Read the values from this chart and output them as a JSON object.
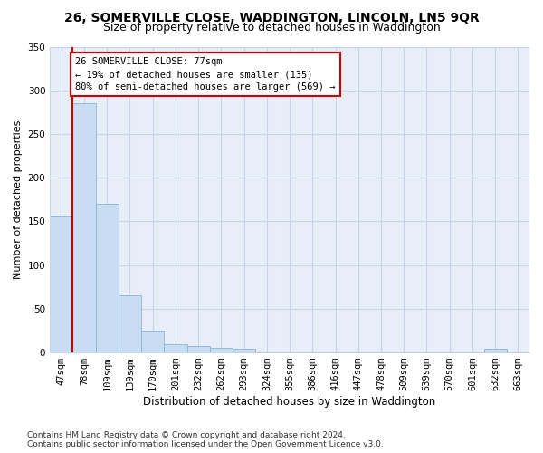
{
  "title": "26, SOMERVILLE CLOSE, WADDINGTON, LINCOLN, LN5 9QR",
  "subtitle": "Size of property relative to detached houses in Waddington",
  "xlabel": "Distribution of detached houses by size in Waddington",
  "ylabel": "Number of detached properties",
  "categories": [
    "47sqm",
    "78sqm",
    "109sqm",
    "139sqm",
    "170sqm",
    "201sqm",
    "232sqm",
    "262sqm",
    "293sqm",
    "324sqm",
    "355sqm",
    "386sqm",
    "416sqm",
    "447sqm",
    "478sqm",
    "509sqm",
    "539sqm",
    "570sqm",
    "601sqm",
    "632sqm",
    "663sqm"
  ],
  "values": [
    157,
    285,
    170,
    65,
    25,
    9,
    7,
    5,
    4,
    0,
    0,
    0,
    0,
    0,
    0,
    0,
    0,
    0,
    0,
    4,
    0
  ],
  "bar_color": "#c9ddf2",
  "bar_edge_color": "#8ab4d8",
  "vline_color": "#cc0000",
  "annotation_text": "26 SOMERVILLE CLOSE: 77sqm\n← 19% of detached houses are smaller (135)\n80% of semi-detached houses are larger (569) →",
  "annotation_box_color": "#ffffff",
  "annotation_box_edge_color": "#cc0000",
  "ylim": [
    0,
    350
  ],
  "yticks": [
    0,
    50,
    100,
    150,
    200,
    250,
    300,
    350
  ],
  "grid_color": "#c8d4e8",
  "background_color": "#e8eef8",
  "footer": "Contains HM Land Registry data © Crown copyright and database right 2024.\nContains public sector information licensed under the Open Government Licence v3.0.",
  "title_fontsize": 10,
  "subtitle_fontsize": 9,
  "xlabel_fontsize": 8.5,
  "ylabel_fontsize": 8,
  "tick_fontsize": 7.5,
  "annotation_fontsize": 7.5,
  "footer_fontsize": 6.5
}
